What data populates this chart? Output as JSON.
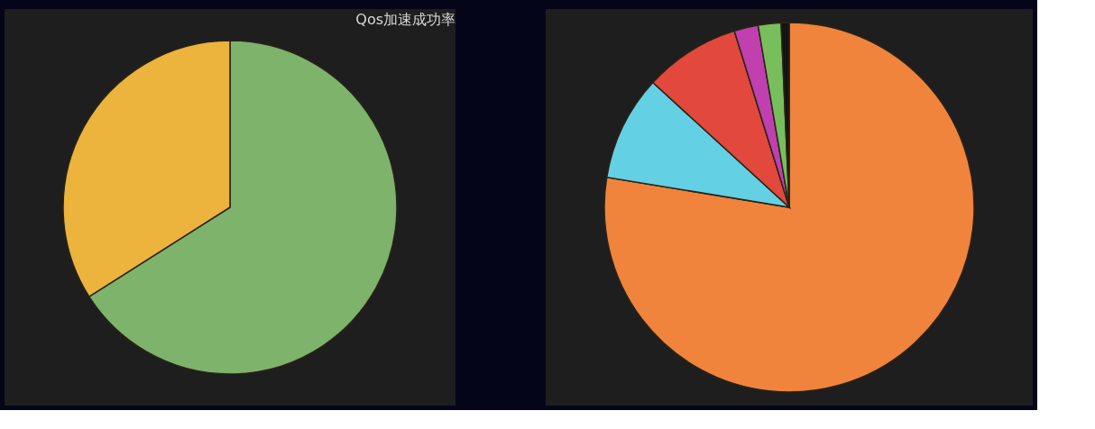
{
  "chart_data": [
    {
      "type": "pie",
      "title": "Qos加速成功率",
      "categories": [
        null,
        null
      ],
      "values": [
        66,
        34
      ],
      "colors": [
        "#7db36b",
        "#ecb43c"
      ]
    },
    {
      "type": "pie",
      "categories": [
        null,
        null,
        null,
        null,
        null,
        null
      ],
      "values": [
        77.6,
        9.2,
        8.4,
        2.1,
        2.0,
        0.7
      ],
      "colors": [
        "#f0843c",
        "#64d0e4",
        "#e2483c",
        "#c040b0",
        "#78be5c",
        "#141414"
      ]
    }
  ]
}
